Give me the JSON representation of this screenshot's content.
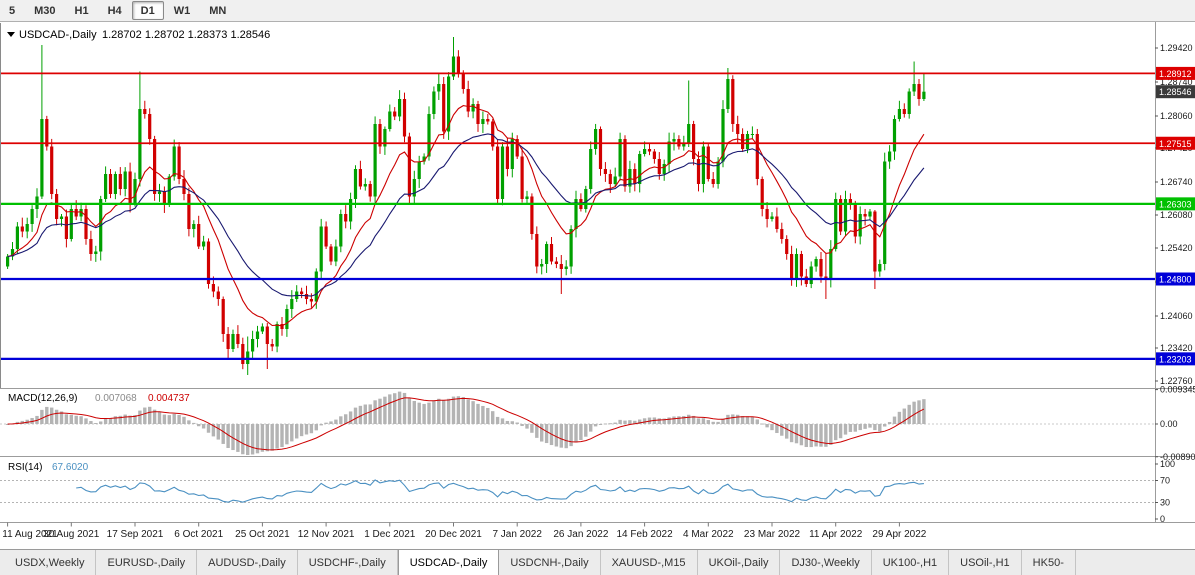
{
  "toolbar": {
    "timeframes": [
      "5",
      "M30",
      "H1",
      "H4",
      "D1",
      "W1",
      "MN"
    ],
    "active": "D1"
  },
  "chart": {
    "title_symbol": "USDCAD-,Daily",
    "title_ohlc": "1.28702 1.28702 1.28373 1.28546",
    "axis_ticks": [
      "1.29420",
      "1.28740",
      "1.28060",
      "1.27420",
      "1.26740",
      "1.26080",
      "1.25420",
      "1.24740",
      "1.24060",
      "1.23420",
      "1.22760"
    ],
    "price_tags": [
      {
        "value": "1.28912",
        "color": "#dd0000",
        "line": true,
        "lw": 1.8
      },
      {
        "value": "1.28546",
        "color": "#3a3a3a",
        "line": false,
        "lw": 0
      },
      {
        "value": "1.27515",
        "color": "#dd0000",
        "line": true,
        "lw": 1.8
      },
      {
        "value": "1.26303",
        "color": "#00c000",
        "line": true,
        "lw": 2.2
      },
      {
        "value": "1.24800",
        "color": "#0000d8",
        "line": true,
        "lw": 2.2
      },
      {
        "value": "1.23203",
        "color": "#0000d8",
        "line": true,
        "lw": 2.2
      }
    ]
  },
  "macd": {
    "label": "MACD(12,26,9)",
    "value1": "0.007068",
    "value2": "0.004737",
    "axis_top": "0.009345",
    "axis_zero": "0.00",
    "axis_bottom": "-0.008902"
  },
  "rsi": {
    "label": "RSI(14)",
    "value": "67.6020",
    "axis": [
      "100",
      "70",
      "30",
      "0"
    ],
    "levels": [
      70,
      30
    ]
  },
  "tabs": {
    "items": [
      "USDX,Weekly",
      "EURUSD-,Daily",
      "AUDUSD-,Daily",
      "USDCHF-,Daily",
      "USDCAD-,Daily",
      "USDCNH-,Daily",
      "XAUUSD-,M15",
      "UKOil-,Daily",
      "DJ30-,Weekly",
      "UK100-,H1",
      "USOil-,H1",
      "HK50-"
    ],
    "active": "USDCAD-,Daily"
  },
  "colors": {
    "candle_up": "#00a000",
    "candle_down": "#d10000",
    "ma_fast": "#cc0000",
    "ma_slow": "#191970",
    "macd_hist": "#b4b4b4",
    "macd_signal": "#cc0000",
    "rsi_line": "#4a90c2",
    "panel_divider": "#9c9c9c"
  },
  "chart_data": {
    "type": "candlestick",
    "symbol": "USDCAD-",
    "timeframe": "Daily",
    "price_axis": {
      "top": 1.2978,
      "bottom": 1.2274
    },
    "open_first": 1.2505,
    "closes": [
      1.2525,
      1.254,
      1.2585,
      1.2575,
      1.259,
      1.262,
      1.2645,
      1.28,
      1.2745,
      1.265,
      1.26,
      1.2605,
      1.256,
      1.262,
      1.2605,
      1.262,
      1.256,
      1.253,
      1.2535,
      1.264,
      1.269,
      1.265,
      1.269,
      1.266,
      1.2695,
      1.263,
      1.268,
      1.282,
      1.281,
      1.276,
      1.265,
      1.2655,
      1.263,
      1.2685,
      1.2745,
      1.268,
      1.265,
      1.258,
      1.259,
      1.2545,
      1.2555,
      1.247,
      1.2455,
      1.244,
      1.237,
      1.234,
      1.237,
      1.235,
      1.231,
      1.2335,
      1.236,
      1.2375,
      1.2385,
      1.235,
      1.2345,
      1.239,
      1.238,
      1.242,
      1.244,
      1.2455,
      1.245,
      1.244,
      1.2435,
      1.2495,
      1.2585,
      1.2545,
      1.2515,
      1.2545,
      1.261,
      1.2595,
      1.264,
      1.27,
      1.2665,
      1.267,
      1.2645,
      1.279,
      1.2745,
      1.278,
      1.2815,
      1.2805,
      1.284,
      1.2765,
      1.2645,
      1.268,
      1.2715,
      1.2725,
      1.281,
      1.2855,
      1.287,
      1.2775,
      1.2885,
      1.2925,
      1.289,
      1.286,
      1.2815,
      1.283,
      1.279,
      1.28,
      1.2795,
      1.2745,
      1.264,
      1.2745,
      1.27,
      1.276,
      1.2725,
      1.264,
      1.2645,
      1.257,
      1.2505,
      1.251,
      1.255,
      1.2515,
      1.251,
      1.25,
      1.2505,
      1.258,
      1.264,
      1.262,
      1.266,
      1.274,
      1.278,
      1.27,
      1.269,
      1.267,
      1.2685,
      1.276,
      1.2665,
      1.27,
      1.267,
      1.273,
      1.274,
      1.2735,
      1.272,
      1.269,
      1.271,
      1.2755,
      1.276,
      1.2745,
      1.275,
      1.279,
      1.272,
      1.267,
      1.2745,
      1.268,
      1.267,
      1.2715,
      1.282,
      1.288,
      1.279,
      1.277,
      1.274,
      1.277,
      1.277,
      1.268,
      1.262,
      1.26,
      1.2605,
      1.258,
      1.256,
      1.253,
      1.248,
      1.253,
      1.2485,
      1.247,
      1.2505,
      1.252,
      1.2485,
      1.248,
      1.254,
      1.264,
      1.2575,
      1.264,
      1.263,
      1.2565,
      1.261,
      1.2605,
      1.2615,
      1.2495,
      1.251,
      1.2715,
      1.2735,
      1.28,
      1.282,
      1.281,
      1.2855,
      1.287,
      1.284,
      1.28546
    ],
    "wick_overrides": {
      "7": [
        1.2948,
        1.264
      ],
      "27": [
        1.2895,
        1.2665
      ],
      "49": [
        1.2365,
        1.2288
      ],
      "53": [
        1.2392,
        1.23
      ],
      "88": [
        1.2892,
        1.2838
      ],
      "91": [
        1.2964,
        1.2878
      ],
      "113": [
        1.2528,
        1.245
      ],
      "139": [
        1.2877,
        1.2744
      ],
      "147": [
        1.2902,
        1.2812
      ],
      "167": [
        1.2532,
        1.244
      ],
      "177": [
        1.2618,
        1.246
      ],
      "185": [
        1.2915,
        1.2846
      ],
      "187": [
        1.2891,
        1.2836
      ]
    },
    "date_labels": [
      {
        "label": "11 Aug 2021",
        "i": 0
      },
      {
        "label": "30 Aug 2021",
        "i": 13
      },
      {
        "label": "17 Sep 2021",
        "i": 26
      },
      {
        "label": "6 Oct 2021",
        "i": 39
      },
      {
        "label": "25 Oct 2021",
        "i": 52
      },
      {
        "label": "12 Nov 2021",
        "i": 65
      },
      {
        "label": "1 Dec 2021",
        "i": 78
      },
      {
        "label": "20 Dec 2021",
        "i": 91
      },
      {
        "label": "7 Jan 2022",
        "i": 104
      },
      {
        "label": "26 Jan 2022",
        "i": 117
      },
      {
        "label": "14 Feb 2022",
        "i": 130
      },
      {
        "label": "4 Mar 2022",
        "i": 143
      },
      {
        "label": "23 Mar 2022",
        "i": 156
      },
      {
        "label": "11 Apr 2022",
        "i": 169
      },
      {
        "label": "29 Apr 2022",
        "i": 182
      }
    ]
  }
}
